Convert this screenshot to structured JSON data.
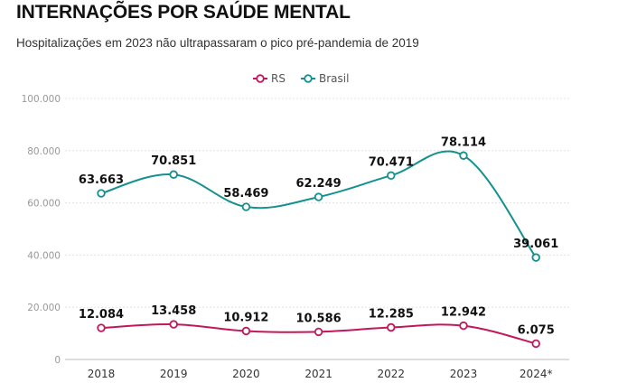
{
  "header": {
    "title": "INTERNAÇÕES POR SAÚDE MENTAL",
    "subtitle": "Hospitalizações em 2023 não ultrapassaram o pico pré-pandemia de 2019"
  },
  "chart_data": {
    "type": "line",
    "categories": [
      "2018",
      "2019",
      "2020",
      "2021",
      "2022",
      "2023",
      "2024*"
    ],
    "series": [
      {
        "name": "RS",
        "color": "#c2185b",
        "values": [
          12084,
          13458,
          10912,
          10586,
          12285,
          12942,
          6075
        ],
        "labels": [
          "12.084",
          "13.458",
          "10.912",
          "10.586",
          "12.285",
          "12.942",
          "6.075"
        ]
      },
      {
        "name": "Brasil",
        "color": "#14918f",
        "values": [
          63663,
          70851,
          58469,
          62249,
          70471,
          78114,
          39061
        ],
        "labels": [
          "63.663",
          "70.851",
          "58.469",
          "62.249",
          "70.471",
          "78.114",
          "39.061"
        ]
      }
    ],
    "ylim": [
      0,
      100000
    ],
    "yticks": [
      0,
      20000,
      40000,
      60000,
      80000,
      100000
    ],
    "ytick_labels": [
      "0",
      "20.000",
      "40.000",
      "60.000",
      "80.000",
      "100.000"
    ],
    "grid": true,
    "legend_position": "top-center",
    "xlabel": "",
    "ylabel": ""
  }
}
